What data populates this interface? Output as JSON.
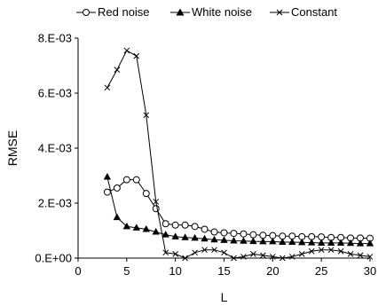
{
  "chart_data": {
    "type": "line",
    "title": "",
    "xlabel": "L",
    "ylabel": "RMSE",
    "xlim": [
      0,
      30
    ],
    "ylim": [
      0,
      0.008
    ],
    "xticks": [
      0,
      5,
      10,
      15,
      20,
      25,
      30
    ],
    "xtick_labels": [
      "0",
      "5",
      "10",
      "15",
      "20",
      "25",
      "30"
    ],
    "yticks": [
      0,
      0.002,
      0.004,
      0.006,
      0.008
    ],
    "ytick_labels": [
      "0.E+00",
      "2.E-03",
      "4.E-03",
      "6.E-03",
      "8.E-03"
    ],
    "grid": false,
    "legend_position": "top",
    "x": [
      3,
      4,
      5,
      6,
      7,
      8,
      9,
      10,
      11,
      12,
      13,
      14,
      15,
      16,
      17,
      18,
      19,
      20,
      21,
      22,
      23,
      24,
      25,
      26,
      27,
      28,
      29,
      30
    ],
    "series": [
      {
        "name": "Red noise",
        "marker": "open-circle",
        "color": "#000000",
        "values": [
          0.0024,
          0.00255,
          0.00285,
          0.00285,
          0.00235,
          0.0018,
          0.00125,
          0.0012,
          0.0012,
          0.00115,
          0.00105,
          0.00095,
          0.00092,
          0.0009,
          0.00088,
          0.00085,
          0.00083,
          0.00082,
          0.0008,
          0.0008,
          0.00078,
          0.00078,
          0.00077,
          0.00075,
          0.00075,
          0.00073,
          0.00073,
          0.00072
        ]
      },
      {
        "name": "White noise",
        "marker": "filled-triangle",
        "color": "#000000",
        "values": [
          0.00295,
          0.00148,
          0.00115,
          0.0011,
          0.00105,
          0.00095,
          0.00085,
          0.00078,
          0.00075,
          0.00073,
          0.0007,
          0.00067,
          0.00065,
          0.00063,
          0.00062,
          0.00061,
          0.0006,
          0.0006,
          0.00058,
          0.00058,
          0.00057,
          0.00056,
          0.00055,
          0.00055,
          0.00055,
          0.00054,
          0.00053,
          0.00053
        ]
      },
      {
        "name": "Constant",
        "marker": "x",
        "color": "#000000",
        "values": [
          0.0062,
          0.00685,
          0.00755,
          0.00735,
          0.0052,
          0.00205,
          0.0002,
          0.00015,
          0.0,
          0.0002,
          0.0003,
          0.0003,
          0.0002,
          0.0,
          5e-05,
          0.00015,
          0.0001,
          5e-05,
          0.0,
          5e-05,
          0.00015,
          0.00025,
          0.0003,
          0.0003,
          0.00025,
          0.00015,
          0.0001,
          5e-05
        ]
      }
    ]
  }
}
